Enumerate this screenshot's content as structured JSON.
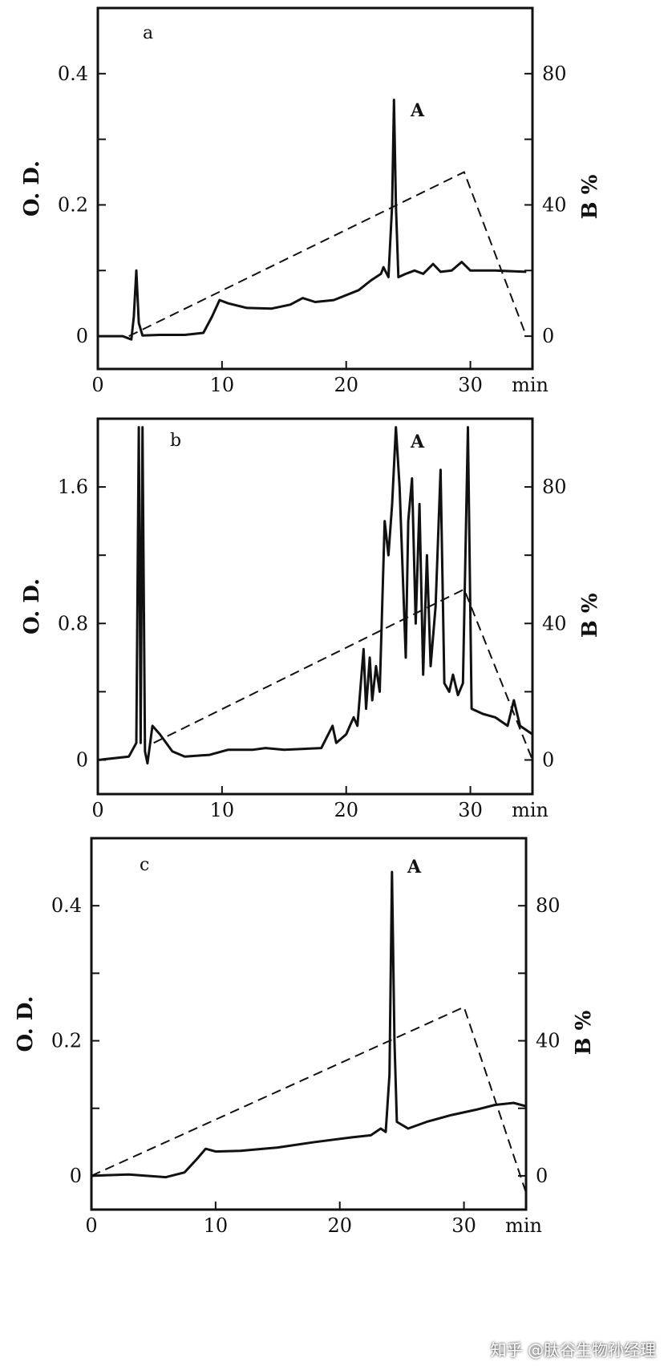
{
  "chart_data": [
    {
      "type": "line",
      "panel": "a",
      "peak_label": "A",
      "xlabel": "min",
      "ylabel": "O. D.",
      "y2label": "B %",
      "xlim": [
        0,
        35
      ],
      "ylim": [
        -0.05,
        0.5
      ],
      "y2lim": [
        -10,
        100
      ],
      "xticks": [
        "0",
        "10",
        "20",
        "30"
      ],
      "yticks": [
        "0",
        "0.2",
        "0.4"
      ],
      "y2ticks": [
        "0",
        "40",
        "80"
      ],
      "od_trace": [
        [
          0,
          0
        ],
        [
          2,
          0
        ],
        [
          2.7,
          -0.005
        ],
        [
          2.9,
          0.03
        ],
        [
          3.1,
          0.1
        ],
        [
          3.3,
          0.02
        ],
        [
          3.6,
          0.001
        ],
        [
          5,
          0.002
        ],
        [
          7,
          0.002
        ],
        [
          8.5,
          0.005
        ],
        [
          9.2,
          0.03
        ],
        [
          9.8,
          0.055
        ],
        [
          10.5,
          0.05
        ],
        [
          12,
          0.043
        ],
        [
          14,
          0.042
        ],
        [
          15.5,
          0.048
        ],
        [
          16.5,
          0.058
        ],
        [
          17.5,
          0.052
        ],
        [
          19,
          0.055
        ],
        [
          21,
          0.07
        ],
        [
          22,
          0.085
        ],
        [
          22.8,
          0.095
        ],
        [
          23,
          0.105
        ],
        [
          23.4,
          0.09
        ],
        [
          23.7,
          0.2
        ],
        [
          23.85,
          0.36
        ],
        [
          24.0,
          0.2
        ],
        [
          24.2,
          0.09
        ],
        [
          24.8,
          0.095
        ],
        [
          25.5,
          0.1
        ],
        [
          26.2,
          0.095
        ],
        [
          27,
          0.11
        ],
        [
          27.6,
          0.098
        ],
        [
          28.5,
          0.1
        ],
        [
          29.3,
          0.113
        ],
        [
          30,
          0.1
        ],
        [
          32,
          0.1
        ],
        [
          34.5,
          0.098
        ]
      ],
      "gradient_trace": [
        [
          2.5,
          0
        ],
        [
          29.5,
          50
        ],
        [
          34.5,
          0
        ]
      ]
    },
    {
      "type": "line",
      "panel": "b",
      "peak_label": "A",
      "xlabel": "min",
      "ylabel": "O. D.",
      "y2label": "B %",
      "xlim": [
        0,
        35
      ],
      "ylim": [
        -0.2,
        2.0
      ],
      "y2lim": [
        -10,
        100
      ],
      "xticks": [
        "0",
        "10",
        "20",
        "30"
      ],
      "yticks": [
        "0",
        "0.8",
        "1.6"
      ],
      "y2ticks": [
        "0",
        "40",
        "80"
      ],
      "od_trace": [
        [
          0,
          0
        ],
        [
          2.5,
          0.02
        ],
        [
          3.1,
          0.1
        ],
        [
          3.3,
          1.95
        ],
        [
          3.45,
          0.1
        ],
        [
          3.6,
          1.95
        ],
        [
          3.8,
          0.05
        ],
        [
          4,
          -0.02
        ],
        [
          4.4,
          0.2
        ],
        [
          5,
          0.15
        ],
        [
          6,
          0.05
        ],
        [
          7,
          0.02
        ],
        [
          9,
          0.03
        ],
        [
          10.5,
          0.06
        ],
        [
          12.5,
          0.06
        ],
        [
          13.5,
          0.07
        ],
        [
          15,
          0.06
        ],
        [
          18,
          0.07
        ],
        [
          18.9,
          0.2
        ],
        [
          19.2,
          0.1
        ],
        [
          20,
          0.15
        ],
        [
          20.6,
          0.25
        ],
        [
          20.9,
          0.2
        ],
        [
          21.4,
          0.65
        ],
        [
          21.6,
          0.3
        ],
        [
          21.9,
          0.6
        ],
        [
          22.1,
          0.35
        ],
        [
          22.4,
          0.55
        ],
        [
          22.7,
          0.4
        ],
        [
          23.1,
          1.4
        ],
        [
          23.4,
          1.2
        ],
        [
          23.7,
          1.5
        ],
        [
          24,
          1.95
        ],
        [
          24.3,
          1.6
        ],
        [
          24.5,
          1.2
        ],
        [
          24.8,
          0.6
        ],
        [
          25,
          1.4
        ],
        [
          25.3,
          1.65
        ],
        [
          25.6,
          0.8
        ],
        [
          25.9,
          1.5
        ],
        [
          26.2,
          0.5
        ],
        [
          26.5,
          1.2
        ],
        [
          26.8,
          0.55
        ],
        [
          27.2,
          0.9
        ],
        [
          27.6,
          1.7
        ],
        [
          27.9,
          0.45
        ],
        [
          28.3,
          0.4
        ],
        [
          28.6,
          0.5
        ],
        [
          29,
          0.38
        ],
        [
          29.4,
          0.45
        ],
        [
          29.8,
          1.95
        ],
        [
          30.1,
          0.3
        ],
        [
          31,
          0.27
        ],
        [
          32,
          0.25
        ],
        [
          33,
          0.2
        ],
        [
          33.5,
          0.35
        ],
        [
          34,
          0.2
        ],
        [
          35,
          0.15
        ]
      ],
      "gradient_trace": [
        [
          4.5,
          5
        ],
        [
          29.5,
          50
        ],
        [
          35,
          0
        ]
      ]
    },
    {
      "type": "line",
      "panel": "c",
      "peak_label": "A",
      "xlabel": "min",
      "ylabel": "O. D.",
      "y2label": "B %",
      "xlim": [
        0,
        35
      ],
      "ylim": [
        -0.05,
        0.5
      ],
      "y2lim": [
        -10,
        100
      ],
      "xticks": [
        "0",
        "10",
        "20",
        "30"
      ],
      "yticks": [
        "0",
        "0.2",
        "0.4"
      ],
      "y2ticks": [
        "0",
        "40",
        "80"
      ],
      "od_trace": [
        [
          0,
          0
        ],
        [
          3,
          0.002
        ],
        [
          6,
          -0.002
        ],
        [
          7.5,
          0.005
        ],
        [
          8.5,
          0.025
        ],
        [
          9.2,
          0.04
        ],
        [
          10,
          0.036
        ],
        [
          12,
          0.037
        ],
        [
          15,
          0.042
        ],
        [
          18,
          0.05
        ],
        [
          21,
          0.057
        ],
        [
          22.5,
          0.06
        ],
        [
          23.3,
          0.07
        ],
        [
          23.7,
          0.065
        ],
        [
          24,
          0.15
        ],
        [
          24.2,
          0.45
        ],
        [
          24.4,
          0.2
        ],
        [
          24.6,
          0.08
        ],
        [
          25.5,
          0.07
        ],
        [
          27,
          0.08
        ],
        [
          29,
          0.09
        ],
        [
          31,
          0.098
        ],
        [
          32.5,
          0.105
        ],
        [
          34,
          0.108
        ],
        [
          35,
          0.103
        ]
      ],
      "gradient_trace": [
        [
          0,
          0
        ],
        [
          30,
          50
        ],
        [
          35,
          -5
        ]
      ]
    }
  ],
  "watermark": "知乎 @肽谷生物孙经理"
}
